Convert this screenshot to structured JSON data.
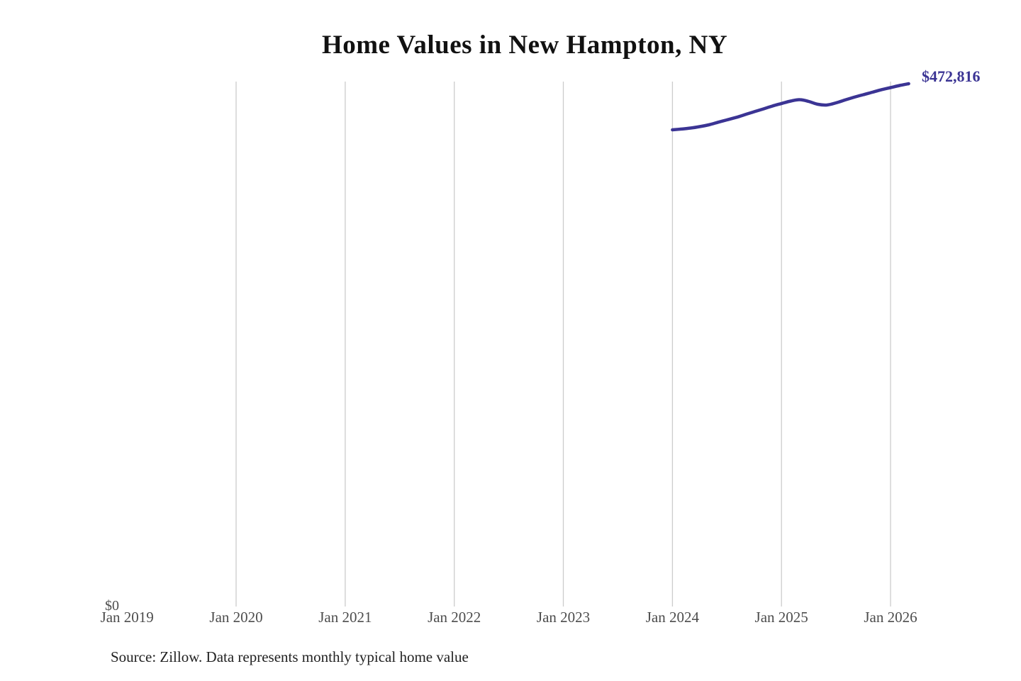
{
  "title": "Home Values in New Hampton, NY",
  "annotation": {
    "end_label": "$472,816"
  },
  "y_axis": {
    "zero_label": "$0"
  },
  "x_axis": {
    "labels": [
      "Jan 2019",
      "Jan 2020",
      "Jan 2021",
      "Jan 2022",
      "Jan 2023",
      "Jan 2024",
      "Jan 2025",
      "Jan 2026"
    ]
  },
  "source": "Source: Zillow. Data represents monthly typical home value",
  "colors": {
    "line": "#3b3494",
    "end_label": "#3b3494",
    "grid": "#cccccc",
    "axis_text": "#4d4d4d",
    "title_text": "#111111",
    "source_text": "#222222",
    "background": "#ffffff"
  },
  "chart_data": {
    "type": "line",
    "title": "Home Values in New Hampton, NY",
    "series_name": "Monthly typical home value",
    "unit": "USD",
    "x": [
      "Jan 2024",
      "Feb 2024",
      "Mar 2024",
      "Apr 2024",
      "May 2024",
      "Jun 2024",
      "Jul 2024",
      "Aug 2024",
      "Sep 2024",
      "Oct 2024",
      "Nov 2024",
      "Dec 2024",
      "Jan 2025",
      "Feb 2025",
      "Mar 2025",
      "Apr 2025",
      "May 2025",
      "Jun 2025",
      "Jul 2025",
      "Aug 2025",
      "Sep 2025",
      "Oct 2025",
      "Nov 2025",
      "Dec 2025",
      "Jan 2026",
      "Feb 2026",
      "Mar 2026"
    ],
    "values": [
      431100,
      431800,
      432700,
      434000,
      435600,
      437900,
      440100,
      442300,
      444900,
      447500,
      450000,
      452600,
      454900,
      457100,
      458400,
      456800,
      454200,
      453600,
      455500,
      458100,
      460600,
      462900,
      465100,
      467400,
      469300,
      471200,
      472816
    ],
    "final_value_label": "$472,816",
    "xlabel": "",
    "ylabel": "",
    "x_axis_tick_labels": [
      "Jan 2019",
      "Jan 2020",
      "Jan 2021",
      "Jan 2022",
      "Jan 2023",
      "Jan 2024",
      "Jan 2025",
      "Jan 2026"
    ],
    "ylim": [
      0,
      475000
    ],
    "grid": "vertical-yearly-gridlines",
    "legend": "none"
  }
}
